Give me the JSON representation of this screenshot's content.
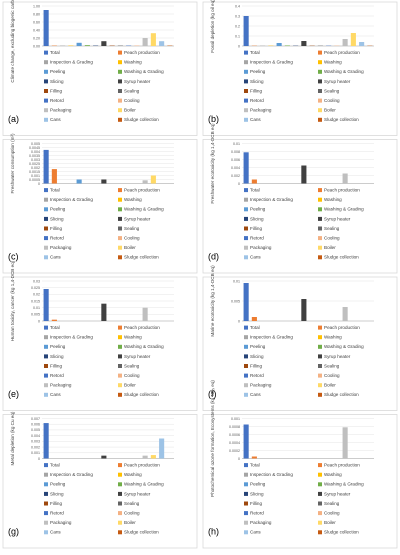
{
  "colors": {
    "Total": "#4472C4",
    "Peach production": "#ED7D31",
    "Inspection & Grading": "#A5A5A5",
    "Washing": "#FFC000",
    "Peeling": "#5B9BD5",
    "Washing & Grading": "#70AD47",
    "Slicing": "#264478",
    "Syrup heater": "#404040",
    "Filling": "#9E480E",
    "Sealing": "#636363",
    "Retord": "#4472C4",
    "Cooling": "#F4B183",
    "Packaging": "#BFBFBF",
    "Boiler": "#FFD966",
    "Cans": "#9DC3E6",
    "Sludge collection": "#C55A11"
  },
  "chart_data": [
    {
      "type": "bar",
      "panel": "(a)",
      "ylabel": "Climate change, excluding biogenic carbon (kg CO₂ eq)",
      "ylim": [
        0,
        1.0
      ],
      "yticks": [
        "0.00",
        "0.20",
        "0.40",
        "0.60",
        "0.80",
        "1.00"
      ],
      "categories": [
        "Total",
        "Peach production",
        "Inspection & Grading",
        "Washing",
        "Peeling",
        "Washing & Grading",
        "Slicing",
        "Syrup heater",
        "Filling",
        "Sealing",
        "Retord",
        "Cooling",
        "Packaging",
        "Boiler",
        "Cans",
        "Sludge collection"
      ],
      "values": [
        0.9,
        0.01,
        0.01,
        0.01,
        0.08,
        0.02,
        0.01,
        0.12,
        0.01,
        0.01,
        0.01,
        0.01,
        0.2,
        0.32,
        0.12,
        0.01
      ]
    },
    {
      "type": "bar",
      "panel": "(b)",
      "ylabel": "Fossil depletion (kg oil eq)",
      "ylim": [
        0,
        0.4
      ],
      "yticks": [
        "0",
        "0.1",
        "0.2",
        "0.3",
        "0.4"
      ],
      "categories": [
        "Total",
        "Peach production",
        "Inspection & Grading",
        "Washing",
        "Peeling",
        "Washing & Grading",
        "Slicing",
        "Syrup heater",
        "Filling",
        "Sealing",
        "Retord",
        "Cooling",
        "Packaging",
        "Boiler",
        "Cans",
        "Sludge collection"
      ],
      "values": [
        0.3,
        0.003,
        0.003,
        0.003,
        0.03,
        0.005,
        0.003,
        0.05,
        0.003,
        0.003,
        0.003,
        0.003,
        0.07,
        0.13,
        0.04,
        0.003
      ]
    },
    {
      "type": "bar",
      "panel": "(c)",
      "ylabel": "Freshwater consumption (m³)",
      "ylim": [
        0,
        0.005
      ],
      "yticks": [
        "0",
        "0.0005",
        "0.001",
        "0.0015",
        "0.002",
        "0.0025",
        "0.003",
        "0.0035",
        "0.004",
        "0.0045",
        "0.005"
      ],
      "categories": [
        "Total",
        "Peach production",
        "Inspection & Grading",
        "Washing",
        "Peeling",
        "Washing & Grading",
        "Slicing",
        "Syrup heater",
        "Filling",
        "Sealing",
        "Retord",
        "Cooling",
        "Packaging",
        "Boiler",
        "Cans",
        "Sludge collection"
      ],
      "values": [
        0.0042,
        0.0018,
        0.0,
        0.0,
        0.0005,
        0.0,
        0.0,
        0.0005,
        0.0,
        0.0,
        0.0,
        0.0,
        0.0004,
        0.001,
        0.0,
        0.0
      ]
    },
    {
      "type": "bar",
      "panel": "(d)",
      "ylabel": "Freshwater ecotoxicity (kg 1,4-DCB eq)",
      "ylim": [
        0,
        0.01
      ],
      "yticks": [
        "0",
        "0.002",
        "0.004",
        "0.006",
        "0.008",
        "0.01"
      ],
      "categories": [
        "Total",
        "Peach production",
        "Inspection & Grading",
        "Washing",
        "Peeling",
        "Washing & Grading",
        "Slicing",
        "Syrup heater",
        "Filling",
        "Sealing",
        "Retord",
        "Cooling",
        "Packaging",
        "Boiler",
        "Cans",
        "Sludge collection"
      ],
      "values": [
        0.0078,
        0.001,
        0.0,
        0.0,
        0.0,
        0.0,
        0.0,
        0.0045,
        0.0,
        0.0,
        0.0,
        0.0,
        0.0025,
        0.0,
        0.0,
        0.0
      ]
    },
    {
      "type": "bar",
      "panel": "(e)",
      "ylabel": "Human toxicity, cancer (kg 1,4-DCB eq)",
      "ylim": [
        0,
        0.03
      ],
      "yticks": [
        "0",
        "0.005",
        "0.01",
        "0.015",
        "0.02",
        "0.025",
        "0.03"
      ],
      "categories": [
        "Total",
        "Peach production",
        "Inspection & Grading",
        "Washing",
        "Peeling",
        "Washing & Grading",
        "Slicing",
        "Syrup heater",
        "Filling",
        "Sealing",
        "Retord",
        "Cooling",
        "Packaging",
        "Boiler",
        "Cans",
        "Sludge collection"
      ],
      "values": [
        0.024,
        0.001,
        0.0,
        0.0,
        0.0,
        0.0,
        0.0,
        0.013,
        0.0,
        0.0,
        0.0,
        0.0,
        0.01,
        0.0,
        0.0,
        0.0
      ]
    },
    {
      "type": "bar",
      "panel": "(f)",
      "ylabel": "Marine ecotoxicity (kg 1,4-DCB eq)",
      "ylim": [
        0,
        0.01
      ],
      "yticks": [
        "0",
        "0.005",
        "0.01"
      ],
      "categories": [
        "Total",
        "Peach production",
        "Inspection & Grading",
        "Washing",
        "Peeling",
        "Washing & Grading",
        "Slicing",
        "Syrup heater",
        "Filling",
        "Sealing",
        "Retord",
        "Cooling",
        "Packaging",
        "Boiler",
        "Cans",
        "Sludge collection"
      ],
      "values": [
        0.0095,
        0.001,
        0.0,
        0.0,
        0.0,
        0.0,
        0.0,
        0.0055,
        0.0,
        0.0,
        0.0,
        0.0,
        0.0035,
        0.0,
        0.0,
        0.0
      ]
    },
    {
      "type": "bar",
      "panel": "(g)",
      "ylabel": "Metal depletion (kg Cu eq)",
      "ylim": [
        0,
        0.007
      ],
      "yticks": [
        "0",
        "0.001",
        "0.002",
        "0.003",
        "0.004",
        "0.005",
        "0.006",
        "0.007"
      ],
      "categories": [
        "Total",
        "Peach production",
        "Inspection & Grading",
        "Washing",
        "Peeling",
        "Washing & Grading",
        "Slicing",
        "Syrup heater",
        "Filling",
        "Sealing",
        "Retord",
        "Cooling",
        "Packaging",
        "Boiler",
        "Cans",
        "Sludge collection"
      ],
      "values": [
        0.0062,
        0.0,
        0.0,
        0.0,
        0.0,
        0.0,
        0.0,
        0.0005,
        0.0,
        0.0,
        0.0,
        0.0,
        0.0005,
        0.0006,
        0.0035,
        0.0
      ]
    },
    {
      "type": "bar",
      "panel": "(h)",
      "ylabel": "Photochemical ozone formation, Ecosystems (kg NOₓ eq)",
      "ylim": [
        0,
        0.001
      ],
      "yticks": [
        "0",
        "0.0002",
        "0.0004",
        "0.0006",
        "0.0008",
        "0.001"
      ],
      "categories": [
        "Total",
        "Peach production",
        "Inspection & Grading",
        "Washing",
        "Peeling",
        "Washing & Grading",
        "Slicing",
        "Syrup heater",
        "Filling",
        "Sealing",
        "Retord",
        "Cooling",
        "Packaging",
        "Boiler",
        "Cans",
        "Sludge collection"
      ],
      "values": [
        0.00085,
        5e-05,
        0.0,
        0.0,
        0.0,
        0.0,
        0.0,
        0.0,
        0.0,
        0.0,
        0.0,
        0.0,
        0.00078,
        0.0,
        0.0,
        0.0
      ]
    }
  ]
}
